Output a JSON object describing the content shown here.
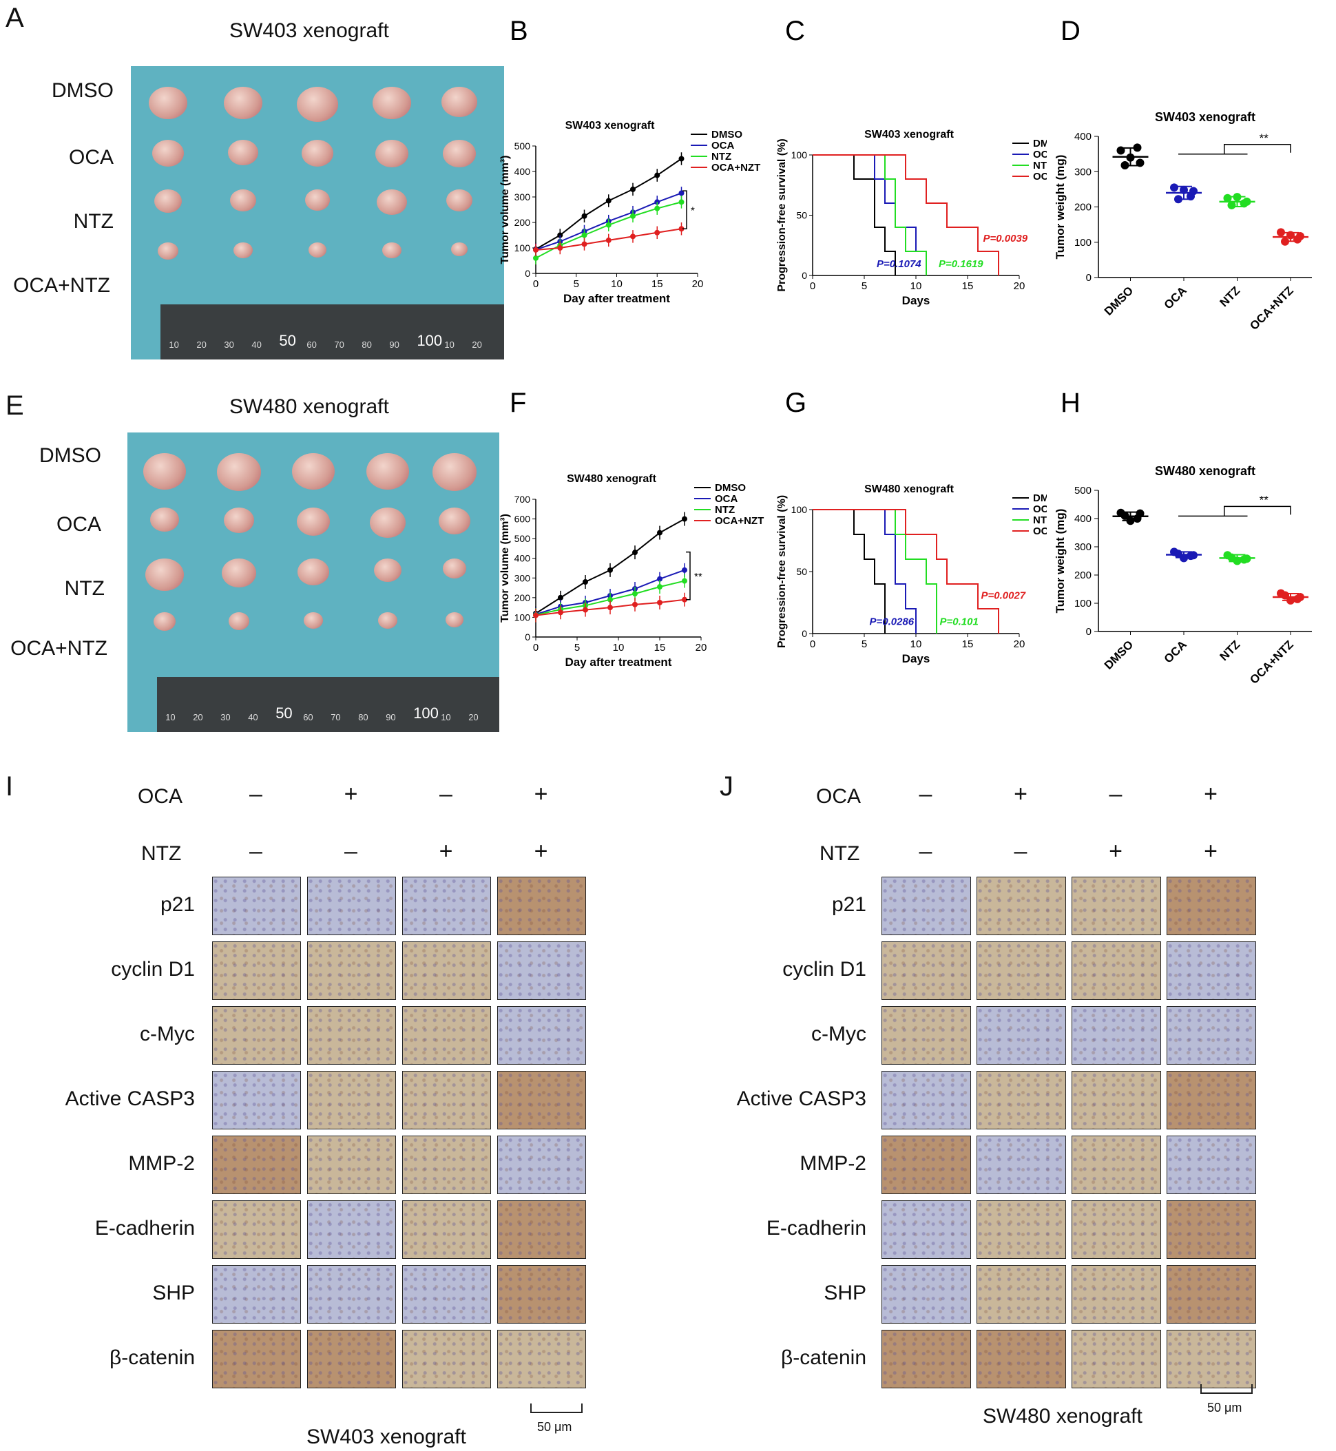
{
  "panels": {
    "A": {
      "letter": "A",
      "title": "SW403 xenograft",
      "rows": [
        "DMSO",
        "OCA",
        "NTZ",
        "OCA+NTZ"
      ],
      "ruler": [
        "10",
        "20",
        "30",
        "40",
        "50",
        "60",
        "70",
        "80",
        "90",
        "100",
        "10",
        "20"
      ]
    },
    "E": {
      "letter": "E",
      "title": "SW480 xenograft",
      "rows": [
        "DMSO",
        "OCA",
        "NTZ",
        "OCA+NTZ"
      ],
      "ruler": [
        "10",
        "20",
        "30",
        "40",
        "50",
        "60",
        "70",
        "80",
        "90",
        "100",
        "10",
        "20"
      ]
    },
    "I": {
      "letter": "I",
      "footer": "SW403 xenograft",
      "scalebar": "50 μm"
    },
    "J": {
      "letter": "J",
      "footer": "SW480 xenograft",
      "scalebar": "50 μm"
    }
  },
  "ihc": {
    "treat_labels": [
      "OCA",
      "NTZ"
    ],
    "oca": [
      "–",
      "+",
      "–",
      "+"
    ],
    "ntz": [
      "–",
      "–",
      "+",
      "+"
    ],
    "markers": [
      "p21",
      "cyclin D1",
      "c-Myc",
      "Active CASP3",
      "MMP-2",
      "E-cadherin",
      "SHP",
      "β-catenin"
    ],
    "colors": {
      "blue": "#b8bcd6",
      "brown": "#b89270",
      "mixed": "#c9b79a"
    }
  },
  "chart_data": [
    {
      "letter": "B",
      "type": "line",
      "title": "SW403 xenograft",
      "xlabel": "Day after treatment",
      "ylabel": "Tumor volume (mm³)",
      "xlim": [
        0,
        20
      ],
      "ylim": [
        0,
        500
      ],
      "xticks": [
        "0",
        "5",
        "10",
        "15",
        "20"
      ],
      "yticks": [
        "0",
        "100",
        "200",
        "300",
        "400",
        "500"
      ],
      "x": [
        0,
        3,
        6,
        9,
        12,
        15,
        18
      ],
      "annotation": "*",
      "series": [
        {
          "name": "DMSO",
          "color": "#000000",
          "values": [
            95,
            150,
            225,
            285,
            330,
            385,
            450
          ]
        },
        {
          "name": "OCA",
          "color": "#1a1ab5",
          "values": [
            93,
            125,
            165,
            205,
            240,
            280,
            315
          ]
        },
        {
          "name": "NTZ",
          "color": "#22dd22",
          "values": [
            60,
            110,
            150,
            190,
            225,
            255,
            280
          ]
        },
        {
          "name": "OCA+NZT",
          "color": "#e02020",
          "values": [
            92,
            100,
            115,
            130,
            145,
            160,
            175
          ]
        }
      ]
    },
    {
      "letter": "C",
      "type": "line",
      "title": "SW403 xenograft",
      "xlabel": "Days",
      "ylabel": "Progression-free survival (%)",
      "xlim": [
        0,
        20
      ],
      "ylim": [
        0,
        100
      ],
      "xticks": [
        "0",
        "5",
        "10",
        "15",
        "20"
      ],
      "yticks": [
        "0",
        "50",
        "100"
      ],
      "series": [
        {
          "name": "DMSO",
          "color": "#000000",
          "steps": [
            [
              0,
              100
            ],
            [
              4,
              100
            ],
            [
              4,
              80
            ],
            [
              6,
              80
            ],
            [
              6,
              40
            ],
            [
              7,
              40
            ],
            [
              7,
              20
            ],
            [
              8,
              20
            ],
            [
              8,
              0
            ]
          ]
        },
        {
          "name": "OCA",
          "color": "#1a1ab5",
          "steps": [
            [
              0,
              100
            ],
            [
              6,
              100
            ],
            [
              6,
              80
            ],
            [
              7,
              80
            ],
            [
              7,
              60
            ],
            [
              8,
              60
            ],
            [
              8,
              40
            ],
            [
              10,
              40
            ],
            [
              10,
              20
            ],
            [
              11,
              20
            ],
            [
              11,
              0
            ]
          ]
        },
        {
          "name": "NTZ",
          "color": "#22dd22",
          "steps": [
            [
              0,
              100
            ],
            [
              7,
              100
            ],
            [
              7,
              80
            ],
            [
              8,
              80
            ],
            [
              8,
              40
            ],
            [
              9,
              40
            ],
            [
              9,
              20
            ],
            [
              11,
              20
            ],
            [
              11,
              0
            ]
          ]
        },
        {
          "name": "OCA+NTZ",
          "color": "#e02020",
          "steps": [
            [
              0,
              100
            ],
            [
              9,
              100
            ],
            [
              9,
              80
            ],
            [
              11,
              80
            ],
            [
              11,
              60
            ],
            [
              13,
              60
            ],
            [
              13,
              40
            ],
            [
              16,
              40
            ],
            [
              16,
              20
            ],
            [
              18,
              20
            ],
            [
              18,
              0
            ]
          ]
        }
      ],
      "pvalues": [
        {
          "text": "P=0.1074",
          "color": "#1a1ab5",
          "x": 6.2,
          "y": 7
        },
        {
          "text": "P=0.1619",
          "color": "#22dd22",
          "x": 12.2,
          "y": 7
        },
        {
          "text": "P=0.0039",
          "color": "#e02020",
          "x": 16.5,
          "y": 28
        }
      ]
    },
    {
      "letter": "D",
      "type": "scatter",
      "title": "SW403 xenograft",
      "ylabel": "Tumor weight (mg)",
      "ylim": [
        0,
        400
      ],
      "yticks": [
        "0",
        "100",
        "200",
        "300",
        "400"
      ],
      "categories": [
        "DMSO",
        "OCA",
        "NTZ",
        "OCA+NTZ"
      ],
      "colors": [
        "#000000",
        "#1a1ab5",
        "#22dd22",
        "#e02020"
      ],
      "means": [
        342,
        240,
        215,
        115
      ],
      "sd": [
        25,
        18,
        14,
        12
      ],
      "points": [
        [
          360,
          368,
          340,
          318,
          325
        ],
        [
          255,
          230,
          248,
          222,
          245
        ],
        [
          225,
          210,
          228,
          205,
          215
        ],
        [
          128,
          108,
          120,
          102,
          117
        ]
      ],
      "annotation": "**"
    },
    {
      "letter": "F",
      "type": "line",
      "title": "SW480 xenograft",
      "xlabel": "Day after treatment",
      "ylabel": "Tumor volume (mm³)",
      "xlim": [
        0,
        20
      ],
      "ylim": [
        0,
        700
      ],
      "xticks": [
        "0",
        "5",
        "10",
        "15",
        "20"
      ],
      "yticks": [
        "0",
        "100",
        "200",
        "300",
        "400",
        "500",
        "600",
        "700"
      ],
      "x": [
        0,
        3,
        6,
        9,
        12,
        15,
        18
      ],
      "annotation": "**",
      "series": [
        {
          "name": "DMSO",
          "color": "#000000",
          "values": [
            120,
            200,
            280,
            340,
            430,
            530,
            600
          ]
        },
        {
          "name": "OCA",
          "color": "#1a1ab5",
          "values": [
            115,
            155,
            175,
            210,
            245,
            295,
            340
          ]
        },
        {
          "name": "NTZ",
          "color": "#22dd22",
          "values": [
            112,
            140,
            160,
            190,
            220,
            255,
            285
          ]
        },
        {
          "name": "OCA+NZT",
          "color": "#e02020",
          "values": [
            110,
            125,
            138,
            150,
            165,
            175,
            190
          ]
        }
      ]
    },
    {
      "letter": "G",
      "type": "line",
      "title": "SW480 xenograft",
      "xlabel": "Days",
      "ylabel": "Progression-free survival (%)",
      "xlim": [
        0,
        20
      ],
      "ylim": [
        0,
        100
      ],
      "xticks": [
        "0",
        "5",
        "10",
        "15",
        "20"
      ],
      "yticks": [
        "0",
        "50",
        "100"
      ],
      "series": [
        {
          "name": "DMSO",
          "color": "#000000",
          "steps": [
            [
              0,
              100
            ],
            [
              4,
              100
            ],
            [
              4,
              80
            ],
            [
              5,
              80
            ],
            [
              5,
              60
            ],
            [
              6,
              60
            ],
            [
              6,
              40
            ],
            [
              7,
              40
            ],
            [
              7,
              0
            ]
          ]
        },
        {
          "name": "OCA",
          "color": "#1a1ab5",
          "steps": [
            [
              0,
              100
            ],
            [
              7,
              100
            ],
            [
              7,
              80
            ],
            [
              8,
              80
            ],
            [
              8,
              40
            ],
            [
              9,
              40
            ],
            [
              9,
              20
            ],
            [
              10,
              20
            ],
            [
              10,
              0
            ]
          ]
        },
        {
          "name": "NTZ",
          "color": "#22dd22",
          "steps": [
            [
              0,
              100
            ],
            [
              8,
              100
            ],
            [
              8,
              80
            ],
            [
              9,
              80
            ],
            [
              9,
              60
            ],
            [
              11,
              60
            ],
            [
              11,
              40
            ],
            [
              12,
              40
            ],
            [
              12,
              20
            ],
            [
              12,
              0
            ]
          ]
        },
        {
          "name": "OCA+NTZ",
          "color": "#e02020",
          "steps": [
            [
              0,
              100
            ],
            [
              9,
              100
            ],
            [
              9,
              80
            ],
            [
              12,
              80
            ],
            [
              12,
              60
            ],
            [
              13,
              60
            ],
            [
              13,
              40
            ],
            [
              16,
              40
            ],
            [
              16,
              20
            ],
            [
              18,
              20
            ],
            [
              18,
              0
            ]
          ]
        }
      ],
      "pvalues": [
        {
          "text": "P=0.0286",
          "color": "#1a1ab5",
          "x": 5.5,
          "y": 7
        },
        {
          "text": "P=0.101",
          "color": "#22dd22",
          "x": 12.3,
          "y": 7
        },
        {
          "text": "P=0.0027",
          "color": "#e02020",
          "x": 16.3,
          "y": 28
        }
      ]
    },
    {
      "letter": "H",
      "type": "scatter",
      "title": "SW480 xenograft",
      "ylabel": "Tumor weight (mg)",
      "ylim": [
        0,
        500
      ],
      "yticks": [
        "0",
        "100",
        "200",
        "300",
        "400",
        "500"
      ],
      "categories": [
        "DMSO",
        "OCA",
        "NTZ",
        "OCA+NTZ"
      ],
      "colors": [
        "#000000",
        "#1a1ab5",
        "#22dd22",
        "#e02020"
      ],
      "means": [
        408,
        272,
        260,
        122
      ],
      "sd": [
        15,
        10,
        12,
        12
      ],
      "points": [
        [
          420,
          400,
          392,
          410,
          418
        ],
        [
          282,
          268,
          260,
          275,
          270
        ],
        [
          270,
          255,
          250,
          262,
          258
        ],
        [
          135,
          115,
          110,
          128,
          122
        ]
      ],
      "annotation": "**"
    }
  ]
}
